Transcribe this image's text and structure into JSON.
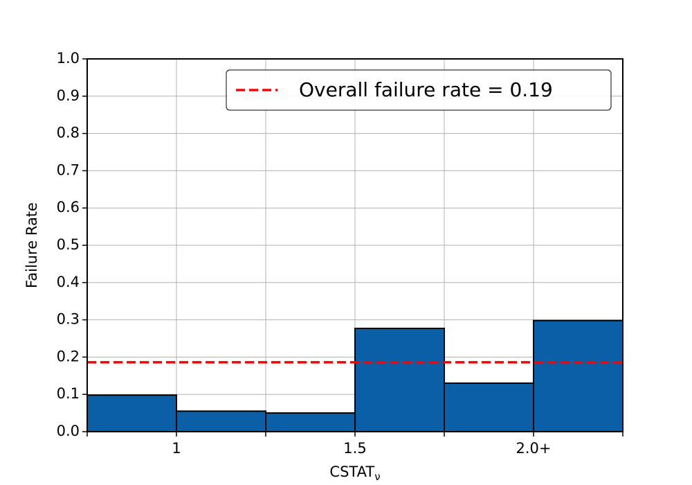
{
  "chart_data": {
    "type": "histogram",
    "xlabel": {
      "text": "CSTAT",
      "subscript": "ν"
    },
    "ylabel": "Failure Rate",
    "bins": [
      0.75,
      1.0,
      1.25,
      1.5,
      1.75,
      2.0,
      2.25
    ],
    "values": [
      0.098,
      0.055,
      0.05,
      0.277,
      0.13,
      0.298
    ],
    "color": "#0a5fa6",
    "xlim": [
      0.75,
      2.25
    ],
    "xticks": [
      1,
      1.5,
      {
        "value": 2.0,
        "label": "2.0+"
      }
    ],
    "xminorticks": [
      0.75,
      1.25,
      1.75,
      2.25
    ],
    "ylim": [
      0,
      1
    ],
    "yticks": [
      {
        "value": 0,
        "label": "0.0"
      },
      0.1,
      0.2,
      0.3,
      0.4,
      0.5,
      0.6,
      0.7,
      0.8,
      0.9,
      {
        "value": 1,
        "label": "1.0"
      }
    ],
    "grid": true,
    "hline": {
      "value": 0.186,
      "label": "Overall failure rate = 0.19",
      "color": "#ff0000"
    },
    "legend": "upper right"
  }
}
